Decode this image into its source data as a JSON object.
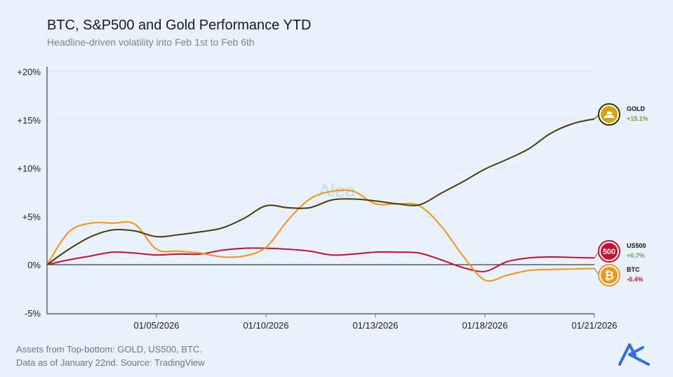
{
  "title": "BTC, S&P500 and Gold Performance YTD",
  "subtitle": "Headline-driven volatility into Feb 1st to Feb 6th",
  "footer": [
    "Assets from Top-bottom: GOLD, US500, BTC.",
    "Data as of January 22nd. Source: TradingView"
  ],
  "watermark": "Alea",
  "chart_data": {
    "type": "line",
    "title": "BTC, S&P500 and Gold Performance YTD",
    "xlabel": "",
    "ylabel": "",
    "ylim": [
      -5,
      20
    ],
    "yticks": [
      -5,
      0,
      5,
      10,
      15,
      20
    ],
    "ytick_labels": [
      "-5%",
      "0%",
      "+5%",
      "+10%",
      "+15%",
      "+20%"
    ],
    "x_tick_labels": [
      "01/05/2026",
      "01/10/2026",
      "01/13/2026",
      "01/18/2026",
      "01/21/2026"
    ],
    "grid": true,
    "legend": "right-end labels",
    "series": [
      {
        "name": "GOLD",
        "color": "#4a3b0c",
        "icon_color": "#d4a20a",
        "end_label": "+15.1%",
        "end_color": "#5fa83a",
        "values": [
          0,
          1.6,
          2.9,
          3.6,
          3.5,
          2.9,
          3.1,
          3.4,
          3.8,
          4.8,
          6.1,
          5.9,
          5.9,
          6.7,
          6.8,
          6.6,
          6.3,
          6.2,
          7.4,
          8.6,
          9.9,
          10.9,
          12.0,
          13.6,
          14.6,
          15.1
        ]
      },
      {
        "name": "US500",
        "color": "#c8102e",
        "icon_color": "#c8102e",
        "icon_text": "500",
        "end_label": "+0.7%",
        "end_color": "#5fa83a",
        "values": [
          0,
          0.5,
          0.9,
          1.3,
          1.2,
          1.0,
          1.1,
          1.1,
          1.5,
          1.7,
          1.7,
          1.6,
          1.4,
          1.0,
          1.1,
          1.3,
          1.3,
          1.2,
          0.5,
          -0.3,
          -0.7,
          0.3,
          0.7,
          0.8,
          0.75,
          0.7
        ]
      },
      {
        "name": "BTC",
        "color": "#f29418",
        "icon_color": "#f29418",
        "icon_text": "₿",
        "end_label": "-0.4%",
        "end_color": "#c8102e",
        "values": [
          0,
          3.4,
          4.3,
          4.3,
          4.2,
          1.6,
          1.4,
          1.2,
          0.8,
          0.9,
          1.8,
          4.6,
          6.8,
          7.6,
          7.6,
          6.3,
          6.3,
          6.1,
          4.0,
          0.9,
          -1.6,
          -1.1,
          -0.6,
          -0.5,
          -0.45,
          -0.4
        ]
      }
    ]
  }
}
